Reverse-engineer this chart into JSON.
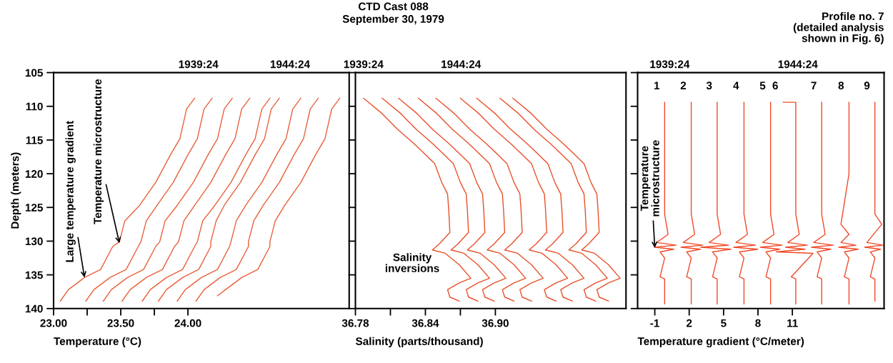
{
  "chart_data": [
    {
      "type": "line",
      "xlabel": "Temperature (°C)",
      "ylabel": "Depth (meters)",
      "xlim": [
        23.0,
        25.2
      ],
      "xticks": [
        {
          "value": 23.0,
          "label": "23.00"
        },
        {
          "value": 23.25,
          "label": null
        },
        {
          "value": 23.5,
          "label": "23.50"
        },
        {
          "value": 23.75,
          "label": null
        },
        {
          "value": 24.0,
          "label": "24.00"
        }
      ],
      "ylim": [
        140,
        105
      ],
      "yticks": [
        105,
        110,
        115,
        120,
        125,
        130,
        135,
        140
      ],
      "grid": false,
      "legend": false,
      "marker": "none",
      "line_style": "solid",
      "annotations": [
        {
          "text": "Large temperature gradient",
          "x": 23.23,
          "y": 135.4
        },
        {
          "text": "Temperature microstructure",
          "x": 23.49,
          "y": 130.3
        },
        "1939:24",
        "1944:24"
      ],
      "series": [
        {
          "color": "#e8603a",
          "x": [
            24.05,
            23.99,
            23.94,
            23.87,
            23.76,
            23.64,
            23.53,
            23.49,
            23.44,
            23.35,
            23.23,
            23.11,
            23.05
          ],
          "values": [
            108.8,
            110.4,
            114.8,
            117.2,
            121.3,
            124.7,
            127.0,
            130.1,
            130.8,
            134.2,
            135.4,
            137.2,
            138.9
          ]
        },
        {
          "color": "#e8603a",
          "x": [
            24.18,
            24.12,
            24.07,
            24.0,
            23.89,
            23.77,
            23.69,
            23.65,
            23.63,
            23.54,
            23.42,
            23.3,
            23.24
          ],
          "values": [
            108.8,
            110.4,
            114.8,
            117.2,
            121.3,
            124.7,
            127.0,
            130.1,
            130.8,
            134.2,
            135.4,
            137.2,
            138.9
          ]
        },
        {
          "color": "#e8603a",
          "x": [
            24.33,
            24.27,
            24.22,
            24.15,
            24.04,
            23.92,
            23.83,
            23.79,
            23.76,
            23.67,
            23.55,
            23.43,
            23.37
          ],
          "values": [
            108.8,
            110.4,
            114.8,
            117.2,
            121.3,
            124.7,
            127.0,
            130.1,
            130.8,
            134.2,
            135.4,
            137.2,
            138.9
          ]
        },
        {
          "color": "#e8603a",
          "x": [
            24.46,
            24.4,
            24.35,
            24.28,
            24.17,
            24.05,
            23.97,
            23.93,
            23.9,
            23.81,
            23.69,
            23.57,
            23.51
          ],
          "values": [
            108.8,
            110.4,
            114.8,
            117.2,
            121.3,
            124.7,
            127.0,
            130.1,
            130.8,
            134.2,
            135.4,
            137.2,
            138.9
          ]
        },
        {
          "color": "#e8603a",
          "x": [
            24.61,
            24.55,
            24.5,
            24.43,
            24.32,
            24.2,
            24.11,
            24.07,
            24.05,
            23.96,
            23.84,
            23.72,
            23.66
          ],
          "values": [
            108.8,
            110.4,
            114.8,
            117.2,
            121.3,
            124.7,
            127.0,
            130.1,
            130.8,
            134.2,
            135.4,
            137.2,
            138.9
          ]
        },
        {
          "color": "#e8603a",
          "x": [
            24.68,
            24.62,
            24.57,
            24.5,
            24.39,
            24.27,
            24.21,
            24.17,
            24.17,
            24.08,
            23.96,
            23.84,
            23.78
          ],
          "values": [
            108.8,
            110.4,
            114.8,
            117.2,
            121.3,
            124.7,
            127.0,
            130.1,
            130.8,
            134.2,
            135.4,
            137.2,
            138.9
          ]
        },
        {
          "color": "#e8603a",
          "x": [
            24.84,
            24.78,
            24.73,
            24.66,
            24.55,
            24.43,
            24.36,
            24.32,
            24.31,
            24.22,
            24.1,
            23.98,
            23.92
          ],
          "values": [
            108.8,
            110.4,
            114.8,
            117.2,
            121.3,
            124.7,
            127.0,
            130.1,
            130.8,
            134.2,
            135.4,
            137.2,
            138.9
          ]
        },
        {
          "color": "#e8603a",
          "x": [
            24.97,
            24.91,
            24.86,
            24.79,
            24.68,
            24.56,
            24.49,
            24.45,
            24.45,
            24.36,
            24.24,
            24.12,
            24.06
          ],
          "values": [
            108.8,
            110.4,
            114.8,
            117.2,
            121.3,
            124.7,
            127.0,
            130.1,
            130.8,
            134.2,
            135.4,
            137.2,
            138.9
          ]
        },
        {
          "color": "#e8603a",
          "x": [
            25.13,
            25.07,
            25.02,
            24.95,
            24.84,
            24.72,
            24.65,
            24.61,
            24.61,
            24.52,
            24.4,
            24.28,
            24.22
          ],
          "values": [
            108.8,
            110.4,
            114.8,
            117.2,
            121.3,
            124.7,
            127.0,
            130.1,
            130.8,
            134.2,
            135.4,
            137.2,
            138.1
          ]
        }
      ]
    },
    {
      "type": "line",
      "title": "CTD Cast 088",
      "subtitle": "September 30, 1979",
      "xlabel": "Salinity (parts/thousand)",
      "xlim": [
        36.78,
        37.012
      ],
      "xticks": [
        36.78,
        {
          "value": 36.81,
          "label": null
        },
        36.84,
        {
          "value": 36.87,
          "label": null
        },
        {
          "value": 36.9,
          "label": "36.90"
        }
      ],
      "ylim": [
        140,
        105
      ],
      "yticks": [
        105,
        110,
        115,
        120,
        125,
        130,
        135,
        140
      ],
      "tick_labels": "x",
      "grid": false,
      "legend": false,
      "marker": "none",
      "line_style": "solid",
      "annotations": [
        "Salinity\ninversions",
        "1939:24",
        "1944:24"
      ],
      "series": [
        {
          "color": "#e8502a",
          "x": [
            36.787,
            36.803,
            36.816,
            36.83,
            36.836,
            36.848,
            36.854,
            36.859,
            36.86,
            36.861,
            36.852,
            36.846,
            36.857,
            36.869,
            36.879,
            36.869,
            36.859,
            36.861,
            36.869
          ],
          "values": [
            108.8,
            111.1,
            113.4,
            115.5,
            116.5,
            118.5,
            121.3,
            123.0,
            125.3,
            128.7,
            130.4,
            131.3,
            131.8,
            133.5,
            135.5,
            136.2,
            137.2,
            138.3,
            138.9
          ]
        },
        {
          "color": "#e8502a",
          "x": [
            36.803,
            36.819,
            36.832,
            36.846,
            36.852,
            36.864,
            36.87,
            36.875,
            36.876,
            36.877,
            36.868,
            36.862,
            36.873,
            36.885,
            36.895,
            36.885,
            36.875,
            36.877,
            36.885
          ],
          "values": [
            108.8,
            111.1,
            113.4,
            115.5,
            116.5,
            118.5,
            121.3,
            123.0,
            125.3,
            128.7,
            130.4,
            131.3,
            131.8,
            133.5,
            135.5,
            136.2,
            137.2,
            138.3,
            138.9
          ]
        },
        {
          "color": "#e8502a",
          "x": [
            36.817,
            36.833,
            36.846,
            36.86,
            36.866,
            36.878,
            36.884,
            36.889,
            36.89,
            36.891,
            36.882,
            36.876,
            36.887,
            36.899,
            36.909,
            36.899,
            36.889,
            36.891,
            36.899
          ],
          "values": [
            108.8,
            111.1,
            113.4,
            115.5,
            116.5,
            118.5,
            121.3,
            123.0,
            125.3,
            128.7,
            130.4,
            131.3,
            131.8,
            133.5,
            135.5,
            136.2,
            137.2,
            138.3,
            138.9
          ]
        },
        {
          "color": "#e8502a",
          "x": [
            36.834,
            36.85,
            36.863,
            36.877,
            36.883,
            36.895,
            36.901,
            36.906,
            36.907,
            36.908,
            36.899,
            36.893,
            36.904,
            36.916,
            36.926,
            36.916,
            36.906,
            36.908,
            36.916
          ],
          "values": [
            108.8,
            111.1,
            113.4,
            115.5,
            116.5,
            118.5,
            121.3,
            123.0,
            125.3,
            128.7,
            130.4,
            131.3,
            131.8,
            133.5,
            135.5,
            136.2,
            137.2,
            138.3,
            138.9
          ]
        },
        {
          "color": "#e8502a",
          "x": [
            36.849,
            36.865,
            36.878,
            36.892,
            36.898,
            36.91,
            36.916,
            36.921,
            36.922,
            36.923,
            36.914,
            36.908,
            36.919,
            36.931,
            36.941,
            36.931,
            36.921,
            36.923,
            36.931
          ],
          "values": [
            108.8,
            111.1,
            113.4,
            115.5,
            116.5,
            118.5,
            121.3,
            123.0,
            125.3,
            128.7,
            130.4,
            131.3,
            131.8,
            133.5,
            135.5,
            136.2,
            137.2,
            138.3,
            138.9
          ]
        },
        {
          "color": "#e8502a",
          "x": [
            36.87,
            36.886,
            36.899,
            36.913,
            36.919,
            36.931,
            36.937,
            36.942,
            36.943,
            36.944,
            36.935,
            36.929,
            36.94,
            36.952,
            36.962,
            36.952,
            36.942,
            36.944,
            36.952
          ],
          "values": [
            108.8,
            111.1,
            113.4,
            115.5,
            116.5,
            118.5,
            121.3,
            123.0,
            125.3,
            128.7,
            130.4,
            131.3,
            131.8,
            133.5,
            135.5,
            136.2,
            137.2,
            138.3,
            138.9
          ]
        },
        {
          "color": "#e8502a",
          "x": [
            36.884,
            36.9,
            36.913,
            36.927,
            36.933,
            36.945,
            36.951,
            36.956,
            36.957,
            36.958,
            36.949,
            36.943,
            36.954,
            36.966,
            36.976,
            36.966,
            36.956,
            36.958,
            36.966
          ],
          "values": [
            108.8,
            111.1,
            113.4,
            115.5,
            116.5,
            118.5,
            121.3,
            123.0,
            125.3,
            128.7,
            130.4,
            131.3,
            131.8,
            133.5,
            135.5,
            136.2,
            137.2,
            138.3,
            138.9
          ]
        },
        {
          "color": "#e8502a",
          "x": [
            36.904,
            36.92,
            36.933,
            36.947,
            36.953,
            36.965,
            36.971,
            36.976,
            36.977,
            36.978,
            36.969,
            36.963,
            36.974,
            36.986,
            36.996,
            36.986,
            36.976,
            36.978,
            36.986
          ],
          "values": [
            108.8,
            111.1,
            113.4,
            115.5,
            116.5,
            118.5,
            121.3,
            123.0,
            125.3,
            128.7,
            130.4,
            131.3,
            131.8,
            133.5,
            135.5,
            136.2,
            137.2,
            138.3,
            138.9
          ]
        },
        {
          "color": "#e8502a",
          "x": [
            36.915,
            36.931,
            36.944,
            36.958,
            36.964,
            36.976,
            36.982,
            36.987,
            36.988,
            36.989,
            36.98,
            36.974,
            36.985,
            36.997,
            37.007,
            36.997,
            36.987,
            36.989,
            36.997
          ],
          "values": [
            108.8,
            111.1,
            113.4,
            115.5,
            116.5,
            118.5,
            121.3,
            123.0,
            125.3,
            128.7,
            130.4,
            131.3,
            131.8,
            133.5,
            135.5,
            136.2,
            137.2,
            138.3,
            138.9
          ]
        }
      ]
    },
    {
      "type": "line",
      "xlabel": "Temperature gradient (°C/meter)",
      "xlim": [
        -2.5,
        19.0
      ],
      "xticks": [
        -1,
        2,
        5,
        8,
        11
      ],
      "ylim": [
        140,
        105
      ],
      "yticks": [
        105,
        110,
        115,
        120,
        125,
        130,
        135,
        140
      ],
      "tick_labels": "x",
      "grid": false,
      "legend": false,
      "marker": "none",
      "line_style": "solid",
      "annotations": [
        {
          "text": "Temperature\nmicrostructure",
          "x": -1,
          "y": 131
        },
        "Profile no. 7\n(detailed analysis\nshown in Fig. 6)",
        "1939:24",
        "1944:24"
      ],
      "series": [
        {
          "name": "1",
          "color": "#f04a28",
          "x": [
            -0.14,
            -0.14,
            -0.14,
            -0.14,
            0.16,
            -0.84,
            0.86,
            -1.04,
            0.66,
            -0.54,
            -0.14,
            -0.54,
            -0.14,
            -0.14
          ],
          "values": [
            109.4,
            115,
            120,
            126,
            129,
            130.2,
            130.6,
            130.9,
            131.2,
            131.6,
            132.5,
            135.3,
            135.6,
            139.3
          ]
        },
        {
          "name": "2",
          "color": "#f04a28",
          "x": [
            2.18,
            2.18,
            2.18,
            2.18,
            2.48,
            1.48,
            3.18,
            1.28,
            2.98,
            1.78,
            2.18,
            1.78,
            2.18,
            2.18
          ],
          "values": [
            109.4,
            115,
            120,
            126,
            129,
            130.2,
            130.6,
            130.9,
            131.2,
            131.6,
            132.5,
            135.3,
            135.6,
            139.3
          ]
        },
        {
          "name": "3",
          "color": "#f04a28",
          "x": [
            4.44,
            4.44,
            4.44,
            4.44,
            4.74,
            3.74,
            5.44,
            3.0,
            5.64,
            4.04,
            4.44,
            4.04,
            4.44,
            4.44
          ],
          "values": [
            109.4,
            115,
            120,
            126,
            129,
            130.2,
            130.6,
            130.9,
            131.2,
            131.6,
            132.5,
            135.3,
            135.6,
            139.3
          ]
        },
        {
          "name": "4",
          "color": "#f04a28",
          "x": [
            6.78,
            6.78,
            6.78,
            6.78,
            7.08,
            6.08,
            7.78,
            5.88,
            7.98,
            6.38,
            6.78,
            6.38,
            6.78,
            6.78
          ],
          "values": [
            109.4,
            115,
            120,
            126,
            129,
            130.2,
            130.6,
            130.9,
            131.2,
            131.6,
            132.5,
            135.3,
            135.6,
            139.3
          ]
        },
        {
          "name": "5",
          "color": "#f04a28",
          "x": [
            9.1,
            9.1,
            9.1,
            9.1,
            9.4,
            8.4,
            10.1,
            8.2,
            9.9,
            8.7,
            9.1,
            8.7,
            9.1,
            9.1
          ],
          "values": [
            109.4,
            115,
            120,
            126,
            129,
            130.2,
            130.6,
            130.9,
            131.2,
            131.6,
            132.5,
            135.3,
            135.6,
            139.3
          ]
        },
        {
          "name": "6",
          "color": "#f04a28",
          "x": [
            10.2,
            11.3,
            11.3,
            11.3,
            11.6,
            10.6,
            12.3,
            10.4,
            12.1,
            9.6,
            12.8,
            10.9,
            11.3,
            11.3
          ],
          "values": [
            109.4,
            109.4,
            120,
            126,
            129,
            130.2,
            130.6,
            130.9,
            131.2,
            131.6,
            131.8,
            135.3,
            135.6,
            139.3
          ]
        },
        {
          "name": "7",
          "color": "#f04a28",
          "x": [
            13.56,
            13.56,
            13.56,
            13.56,
            13.86,
            12.86,
            14.56,
            12.66,
            14.36,
            13.16,
            13.56,
            13.16,
            13.56,
            13.56
          ],
          "values": [
            109.4,
            115,
            120,
            126,
            129,
            130.2,
            130.6,
            130.9,
            131.2,
            131.6,
            132.5,
            135.3,
            135.6,
            139.3
          ]
        },
        {
          "name": "8",
          "color": "#f04a28",
          "x": [
            15.94,
            15.94,
            15.94,
            15.24,
            15.94,
            15.24,
            16.54,
            15.04,
            16.74,
            15.54,
            15.94,
            15.54,
            15.94,
            15.94
          ],
          "values": [
            109.4,
            115,
            120,
            127.5,
            129,
            130.2,
            130.6,
            130.9,
            131.2,
            131.6,
            132.5,
            135.3,
            135.6,
            139.3
          ]
        },
        {
          "name": "9",
          "color": "#f04a28",
          "x": [
            18.2,
            18.2,
            18.2,
            18.2,
            18.8,
            17.5,
            18.9,
            17.3,
            18.7,
            17.8,
            18.2,
            17.8,
            18.2,
            18.2
          ],
          "values": [
            109.4,
            115,
            120,
            126,
            127.5,
            130.2,
            130.6,
            130.9,
            131.2,
            131.6,
            132.5,
            135.3,
            135.6,
            138.9
          ]
        }
      ]
    }
  ]
}
